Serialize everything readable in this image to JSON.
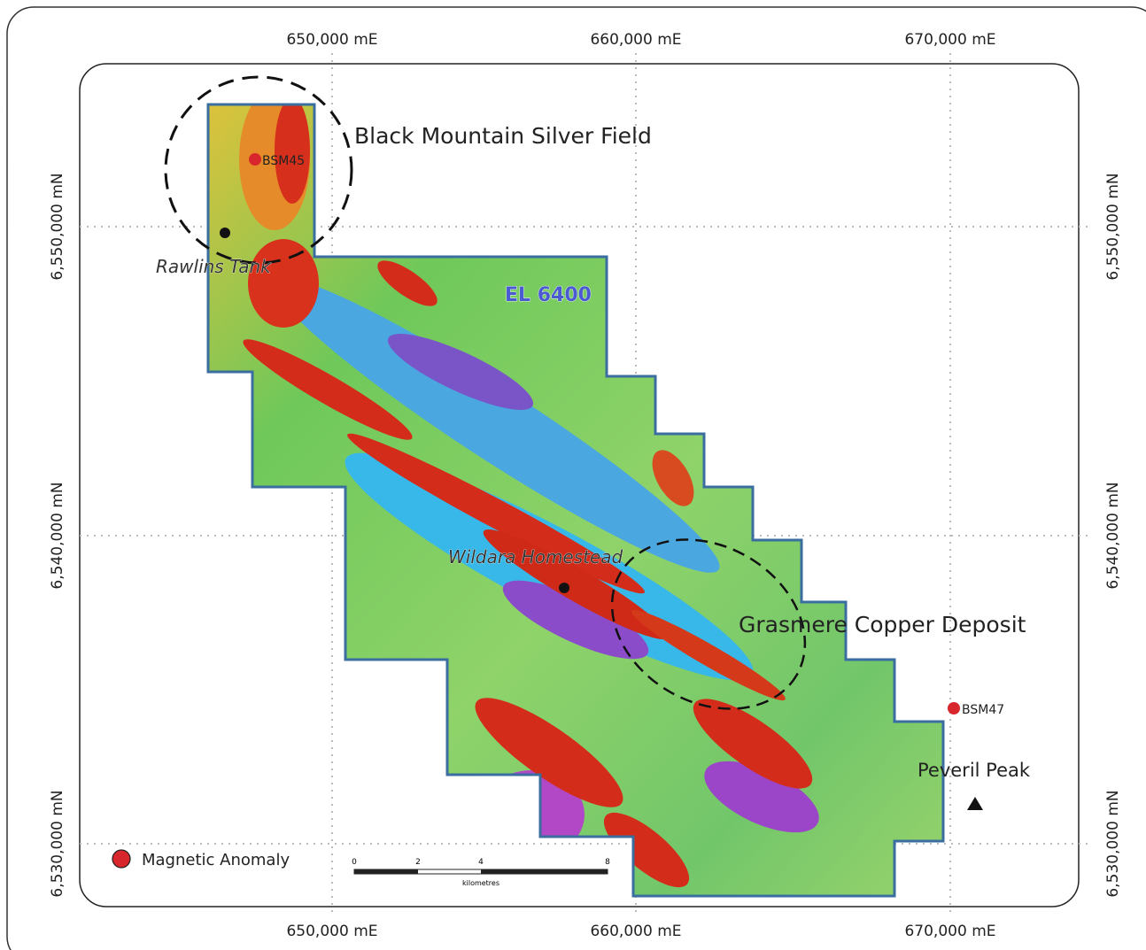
{
  "map": {
    "grid": {
      "easting_labels": [
        "650,000 mE",
        "660,000 mE",
        "670,000 mE"
      ],
      "northing_labels": [
        "6,550,000 mN",
        "6,540,000 mN",
        "6,530,000 mN"
      ]
    },
    "places": [
      {
        "label": "Black Mountain Silver Field"
      },
      {
        "label": "BSM45"
      },
      {
        "label": "Rawlins Tank"
      },
      {
        "label": "EL 6400"
      },
      {
        "label": "Wildara Homestead"
      },
      {
        "label": "Grasmere Copper Deposit"
      },
      {
        "label": "BSM47"
      },
      {
        "label": "Peveril Peak"
      }
    ],
    "legend": {
      "label": "Magnetic Anomaly"
    },
    "scale_bar": {
      "ticks": [
        "0",
        "2",
        "4",
        "8"
      ],
      "unit": "kilometres"
    }
  }
}
